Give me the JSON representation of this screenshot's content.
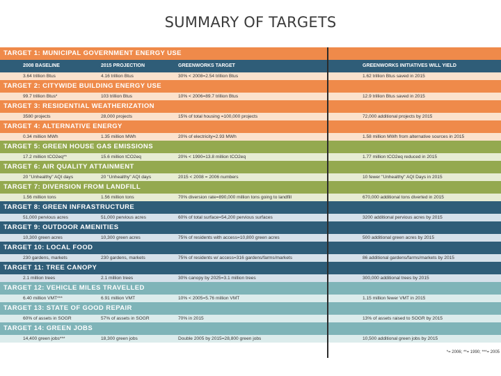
{
  "title": "SUMMARY OF TARGETS",
  "headers": [
    "2008 BASELINE",
    "2015 PROJECTION",
    "GREENWORKS TARGET",
    "GREENWORKS INITIATIVES WILL YIELD"
  ],
  "colors": {
    "orange": "#ef8a4a",
    "green": "#94a94f",
    "blue": "#2f5d78",
    "teal": "#7fb4b8",
    "light_orange": "#fbe2cd",
    "light_green": "#e7ecd3",
    "light_blue": "#d6e1ea",
    "light_teal": "#dcecec"
  },
  "targets": [
    {
      "label": "TARGET 1: MUNICIPAL GOVERNMENT ENERGY USE",
      "theme": "orange",
      "cells": [
        "3.64 trillion Btus",
        "4.16 trillion Btus",
        "30% < 2008=2.54 trillion Btus",
        "1.62 trillion Btus saved in 2015"
      ]
    },
    {
      "label": "TARGET 2: CITYWIDE BUILDING ENERGY USE",
      "theme": "orange",
      "cells": [
        "99.7 trillion Btus*",
        "103 trillion Btus",
        "10% < 2006=89.7 trillion Btus",
        "12.9 trillion Btus saved in 2015"
      ]
    },
    {
      "label": "TARGET 3: RESIDENTIAL WEATHERIZATION",
      "theme": "orange",
      "cells": [
        "3580 projects",
        "28,000 projects",
        "15% of total housing =100,000 projects",
        "72,000 additional projects by 2015"
      ]
    },
    {
      "label": "TARGET 4: ALTERNATIVE ENERGY",
      "theme": "orange",
      "cells": [
        "0.34 million MWh",
        "1.35 million MWh",
        "20% of electricity=2.93 MWh",
        "1.58 million MWh from alternative sources in 2015"
      ]
    },
    {
      "label": "TARGET 5: GREEN HOUSE GAS EMISSIONS",
      "theme": "green",
      "cells": [
        "17.2 million tCO2eq**",
        "15.6 million tCO2eq",
        "20% < 1990=13.8 million tCO2eq",
        "1.77 million tCO2eq reduced in 2015"
      ]
    },
    {
      "label": "TARGET 6: AIR QUALITY ATTAINMENT",
      "theme": "green",
      "cells": [
        "20 \"Unhealthy\" AQI days",
        "20 \"Unhealthy\" AQI days",
        "2015 < 2008 = 2006 numbers",
        "10 fewer \"Unhealthy\" AQI Days in 2015"
      ]
    },
    {
      "label": "TARGET 7: DIVERSION FROM LANDFILL",
      "theme": "green",
      "cells": [
        "1.56 million tons",
        "1.56 million tons",
        "70% diversion rate=890,000 million tons going to landfill",
        "670,000 additional tons diverted in 2015"
      ]
    },
    {
      "label": "TARGET 8: GREEN INFRASTRUCTURE",
      "theme": "blue",
      "cells": [
        "51,000 pervious acres",
        "51,000 pervious acres",
        "60% of total surface=54,200 pervious surfaces",
        "3200 additional pervious acres by 2015"
      ]
    },
    {
      "label": "TARGET 9: OUTDOOR AMENITIES",
      "theme": "blue",
      "cells": [
        "10,300 green acres",
        "10,300 green acres",
        "75% of residents with access=10,800 green acres",
        "500 additional green acres by 2015"
      ]
    },
    {
      "label": "TARGET 10: LOCAL FOOD",
      "theme": "blue",
      "cells": [
        "230 gardens, markets",
        "230 gardens, markets",
        "75% of residents w/ access=316 gardens/farms/markets",
        "86 additional gardens/farms/markets by 2015"
      ]
    },
    {
      "label": "TARGET 11: TREE CANOPY",
      "theme": "blue",
      "cells": [
        "2.1 million trees",
        "2.1 million trees",
        "30% canopy by 2025=3.1 million trees",
        "300,000 additional trees by 2015"
      ]
    },
    {
      "label": "TARGET 12: VEHICLE MILES TRAVELLED",
      "theme": "teal",
      "cells": [
        "6.40 million VMT***",
        "6.91 million VMT",
        "10% < 2005=5.76 million VMT",
        "1.15 million fewer VMT in 2015"
      ]
    },
    {
      "label": "TARGET 13: STATE OF GOOD REPAIR",
      "theme": "teal",
      "cells": [
        "60% of assets in SOGR",
        "57% of assets in SOGR",
        "70% in 2015",
        "13% of assets raised to SOGR by 2015"
      ]
    },
    {
      "label": "TARGET 14: GREEN JOBS",
      "theme": "teal",
      "cells": [
        "14,400 green jobs***",
        "18,300 green jobs",
        "Double 2005 by 2015=28,800 green jobs",
        "10,500 additional green jobs by 2015"
      ]
    }
  ],
  "footnote": "*= 2006; **= 1990; ***= 2005"
}
